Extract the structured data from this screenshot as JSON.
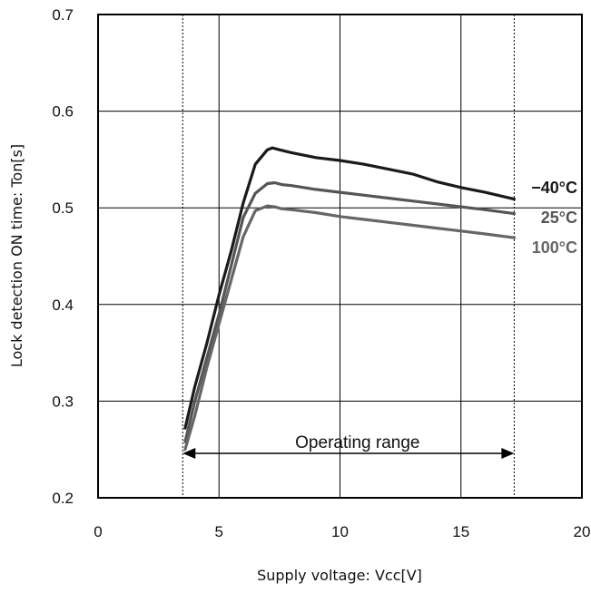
{
  "chart_data": {
    "type": "line",
    "title": "",
    "xlabel": "Supply voltage: Vcc[V]",
    "ylabel": "Lock detection ON time: Ton[s]",
    "xlim": [
      0,
      20
    ],
    "ylim": [
      0.2,
      0.7
    ],
    "xticks": [
      0,
      5,
      10,
      15,
      20
    ],
    "yticks": [
      0.2,
      0.3,
      0.4,
      0.5,
      0.6,
      0.7
    ],
    "grid": true,
    "series": [
      {
        "name": "−40°C",
        "color": "#1a1a1a",
        "x": [
          3.6,
          4.0,
          4.5,
          5.0,
          5.5,
          6.0,
          6.5,
          7.0,
          7.2,
          7.5,
          8.0,
          9.0,
          10.0,
          11.0,
          12.0,
          13.0,
          14.0,
          15.0,
          16.0,
          17.2
        ],
        "y": [
          0.272,
          0.315,
          0.36,
          0.41,
          0.455,
          0.505,
          0.545,
          0.56,
          0.562,
          0.56,
          0.557,
          0.552,
          0.549,
          0.545,
          0.54,
          0.535,
          0.527,
          0.521,
          0.516,
          0.509
        ]
      },
      {
        "name": "25°C",
        "color": "#555555",
        "x": [
          3.6,
          4.0,
          4.5,
          5.0,
          5.5,
          6.0,
          6.5,
          7.0,
          7.3,
          7.6,
          8.0,
          9.0,
          10.0,
          11.0,
          12.0,
          13.0,
          14.0,
          15.0,
          16.0,
          17.2
        ],
        "y": [
          0.258,
          0.3,
          0.345,
          0.39,
          0.44,
          0.49,
          0.515,
          0.525,
          0.526,
          0.524,
          0.523,
          0.519,
          0.516,
          0.513,
          0.51,
          0.507,
          0.504,
          0.501,
          0.498,
          0.494
        ]
      },
      {
        "name": "100°C",
        "color": "#666666",
        "x": [
          3.6,
          4.0,
          4.5,
          5.0,
          5.5,
          6.0,
          6.5,
          7.0,
          7.3,
          7.6,
          8.0,
          9.0,
          10.0,
          11.0,
          12.0,
          13.0,
          14.0,
          15.0,
          16.0,
          17.2
        ],
        "y": [
          0.25,
          0.285,
          0.335,
          0.38,
          0.425,
          0.47,
          0.497,
          0.502,
          0.501,
          0.499,
          0.498,
          0.495,
          0.491,
          0.488,
          0.485,
          0.482,
          0.479,
          0.476,
          0.473,
          0.469
        ]
      }
    ],
    "annotations": {
      "operating_range_label": "Operating range",
      "operating_range_x": [
        3.5,
        17.2
      ]
    }
  }
}
